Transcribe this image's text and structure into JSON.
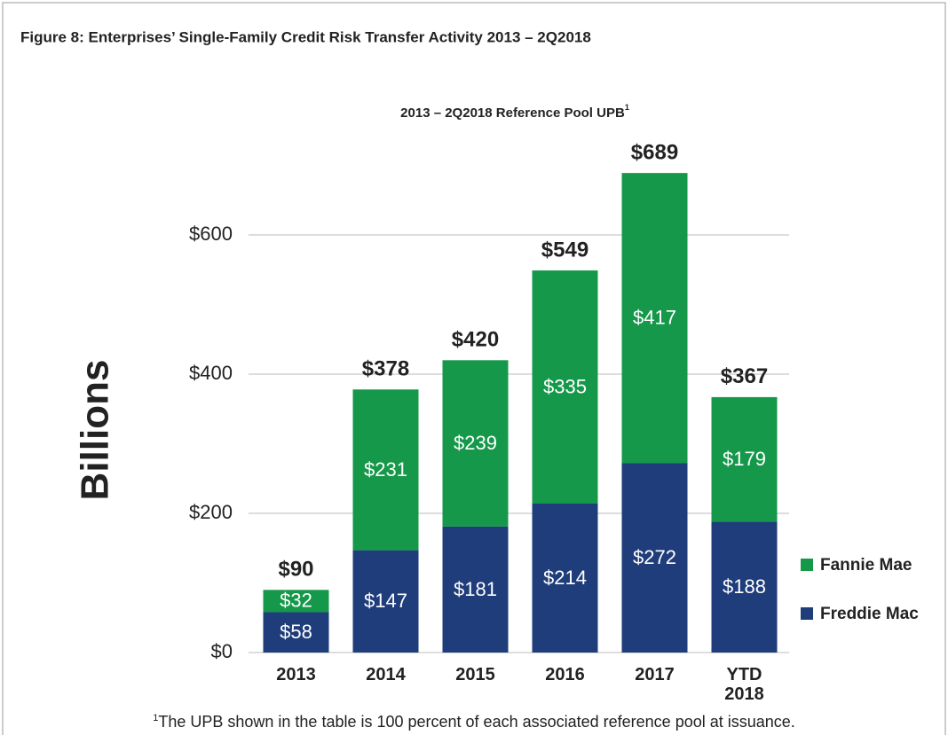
{
  "chart_data": {
    "type": "stacked_bar",
    "title": "Figure 8:  Enterprises’ Single-Family Credit Risk Transfer Activity 2013 – 2Q2018",
    "subtitle": "2013 – 2Q2018 Reference Pool UPB",
    "subtitle_footnote_mark": "1",
    "y_axis_label": "Billions",
    "categories": [
      "2013",
      "2014",
      "2015",
      "2016",
      "2017",
      "YTD 2018"
    ],
    "series": [
      {
        "name": "Freddie Mac",
        "color": "#1f3d7a",
        "values": [
          58,
          147,
          181,
          214,
          272,
          188
        ],
        "value_labels": [
          "$58",
          "$147",
          "$181",
          "$214",
          "$272",
          "$188"
        ]
      },
      {
        "name": "Fannie Mae",
        "color": "#16984a",
        "values": [
          32,
          231,
          239,
          335,
          417,
          179
        ],
        "value_labels": [
          "$32",
          "$231",
          "$239",
          "$335",
          "$417",
          "$179"
        ]
      }
    ],
    "totals": [
      90,
      378,
      420,
      549,
      689,
      367
    ],
    "total_labels": [
      "$90",
      "$378",
      "$420",
      "$549",
      "$689",
      "$367"
    ],
    "ylim": [
      0,
      700
    ],
    "yticks": [
      {
        "value": 0,
        "label": "$0"
      },
      {
        "value": 200,
        "label": "$200"
      },
      {
        "value": 400,
        "label": "$400"
      },
      {
        "value": 600,
        "label": "$600"
      }
    ],
    "grid": true,
    "legend": "right",
    "footnote_mark": "1",
    "footnote": "The UPB shown in the table is 100 percent of each associated reference pool at issuance."
  }
}
